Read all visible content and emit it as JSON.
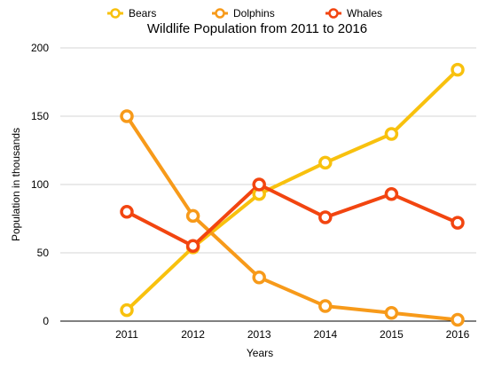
{
  "chart_data": {
    "type": "line",
    "title": "Wildlife Population from 2011 to 2016",
    "xlabel": "Years",
    "ylabel": "Population in thousands",
    "categories": [
      "2011",
      "2012",
      "2013",
      "2014",
      "2015",
      "2016"
    ],
    "yticks": [
      "0",
      "50",
      "100",
      "150",
      "200"
    ],
    "ylim": [
      0,
      200
    ],
    "grid": true,
    "legend_position": "top",
    "series": [
      {
        "name": "Bears",
        "color": "#f8c10e",
        "values": [
          8,
          54,
          93,
          116,
          137,
          184
        ]
      },
      {
        "name": "Dolphins",
        "color": "#f79a1a",
        "values": [
          150,
          77,
          32,
          11,
          6,
          1
        ]
      },
      {
        "name": "Whales",
        "color": "#f24510",
        "values": [
          80,
          55,
          100,
          76,
          93,
          72
        ]
      }
    ]
  }
}
